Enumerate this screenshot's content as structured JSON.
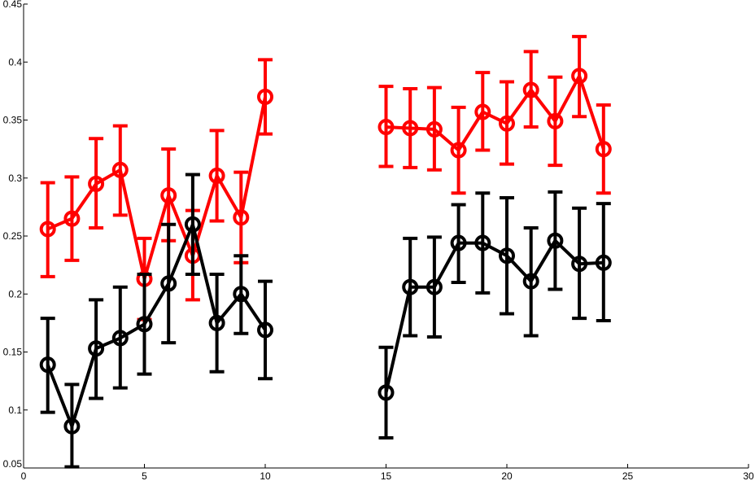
{
  "chart_data": {
    "type": "line",
    "title": "",
    "xlabel": "",
    "ylabel": "",
    "xlim": [
      0,
      30
    ],
    "ylim": [
      0.05,
      0.45
    ],
    "xticks": [
      0,
      5,
      10,
      15,
      20,
      25,
      30
    ],
    "yticks": [
      0.05,
      0.1,
      0.15,
      0.2,
      0.25,
      0.3,
      0.35,
      0.4,
      0.45
    ],
    "xtick_labels": [
      "0",
      "5",
      "10",
      "15",
      "20",
      "25",
      "30"
    ],
    "ytick_labels": [
      "0.05",
      "0.1",
      "0.15",
      "0.2",
      "0.25",
      "0.3",
      "0.35",
      "0.4",
      "0.45"
    ],
    "grid": false,
    "series": [
      {
        "color": "#ff0000",
        "marker": "circle-open",
        "segments": [
          {
            "x": [
              1,
              2,
              3,
              4,
              5,
              6,
              7,
              8,
              9,
              10
            ],
            "y": [
              0.256,
              0.265,
              0.295,
              0.307,
              0.213,
              0.285,
              0.233,
              0.302,
              0.266,
              0.37
            ],
            "err_low": [
              0.215,
              0.229,
              0.257,
              0.268,
              0.178,
              0.246,
              0.195,
              0.263,
              0.227,
              0.338
            ],
            "err_high": [
              0.296,
              0.301,
              0.334,
              0.345,
              0.248,
              0.325,
              0.272,
              0.341,
              0.305,
              0.402
            ]
          },
          {
            "x": [
              15,
              16,
              17,
              18,
              19,
              20,
              21,
              22,
              23,
              24
            ],
            "y": [
              0.344,
              0.343,
              0.342,
              0.324,
              0.357,
              0.347,
              0.376,
              0.349,
              0.388,
              0.325
            ],
            "err_low": [
              0.31,
              0.309,
              0.307,
              0.287,
              0.324,
              0.312,
              0.344,
              0.311,
              0.353,
              0.287
            ],
            "err_high": [
              0.379,
              0.377,
              0.378,
              0.361,
              0.391,
              0.383,
              0.409,
              0.387,
              0.422,
              0.363
            ]
          }
        ]
      },
      {
        "color": "#000000",
        "marker": "circle-open",
        "segments": [
          {
            "x": [
              1,
              2,
              3,
              4,
              5,
              6,
              7,
              8,
              9,
              10
            ],
            "y": [
              0.139,
              0.086,
              0.153,
              0.162,
              0.174,
              0.209,
              0.26,
              0.175,
              0.2,
              0.169
            ],
            "err_low": [
              0.098,
              0.051,
              0.11,
              0.119,
              0.131,
              0.158,
              0.217,
              0.133,
              0.166,
              0.127
            ],
            "err_high": [
              0.179,
              0.122,
              0.195,
              0.206,
              0.217,
              0.26,
              0.303,
              0.217,
              0.233,
              0.211
            ]
          },
          {
            "x": [
              15,
              16,
              17,
              18,
              19,
              20,
              21,
              22,
              23,
              24
            ],
            "y": [
              0.115,
              0.206,
              0.206,
              0.244,
              0.244,
              0.233,
              0.211,
              0.246,
              0.226,
              0.227
            ],
            "err_low": [
              0.076,
              0.164,
              0.163,
              0.21,
              0.201,
              0.183,
              0.164,
              0.204,
              0.179,
              0.177
            ],
            "err_high": [
              0.154,
              0.248,
              0.249,
              0.277,
              0.287,
              0.283,
              0.257,
              0.288,
              0.274,
              0.278
            ]
          }
        ]
      }
    ]
  }
}
